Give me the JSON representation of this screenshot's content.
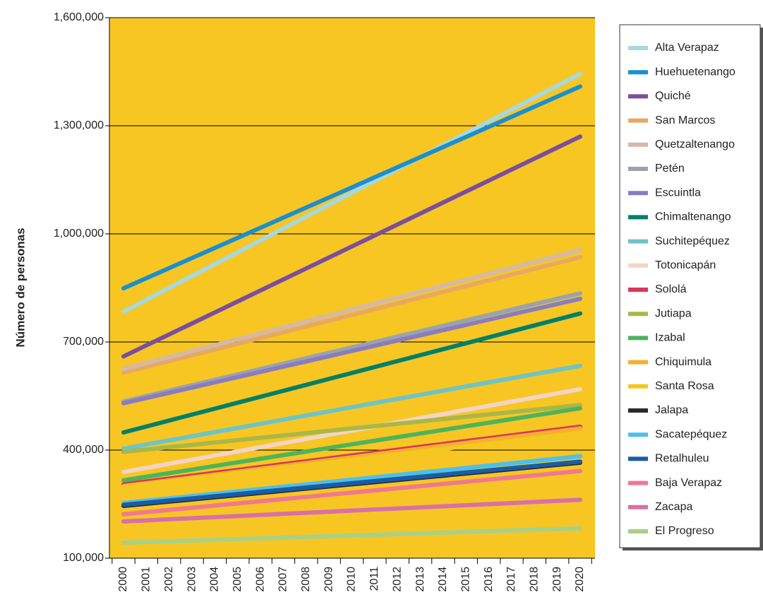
{
  "chart_data": {
    "type": "line",
    "ylabel": "Número de personas",
    "categories": [
      "2000",
      "2001",
      "2002",
      "2003",
      "2004",
      "2005",
      "2006",
      "2007",
      "2008",
      "2009",
      "2010",
      "2011",
      "2012",
      "2013",
      "2014",
      "2015",
      "2016",
      "2017",
      "2018",
      "2019",
      "2020"
    ],
    "ylim": [
      100000,
      1600000
    ],
    "yticks": [
      {
        "value": 100000,
        "label": "100,000"
      },
      {
        "value": 400000,
        "label": "400,000"
      },
      {
        "value": 700000,
        "label": "700,000"
      },
      {
        "value": 1000000,
        "label": "1,000,000"
      },
      {
        "value": 1300000,
        "label": "1,300,000"
      },
      {
        "value": 1600000,
        "label": "1,600,000"
      }
    ],
    "grid": true,
    "background": "#f7c623",
    "legend": "right",
    "series": [
      {
        "name": "Alta Verapaz",
        "color": "#a6d8e0",
        "values": [
          784000,
          817000,
          850000,
          883000,
          916000,
          949000,
          982000,
          1015000,
          1048000,
          1081000,
          1114000,
          1147000,
          1180000,
          1213000,
          1246000,
          1279000,
          1312000,
          1345000,
          1378000,
          1411000,
          1444000
        ]
      },
      {
        "name": "Huehuetenango",
        "color": "#1a8fd0",
        "values": [
          849000,
          877000,
          905000,
          933000,
          961000,
          989000,
          1017000,
          1045000,
          1073000,
          1101000,
          1129000,
          1157000,
          1185000,
          1213000,
          1241000,
          1269000,
          1297000,
          1325000,
          1353000,
          1381000,
          1409000
        ]
      },
      {
        "name": "Quiché",
        "color": "#7a4e9e",
        "values": [
          660000,
          690500,
          721000,
          751500,
          782000,
          812500,
          843000,
          873500,
          904000,
          934500,
          965000,
          995500,
          1026000,
          1056500,
          1087000,
          1117500,
          1148000,
          1178500,
          1209000,
          1239500,
          1270000
        ]
      },
      {
        "name": "San Marcos",
        "color": "#e8a860",
        "values": [
          615000,
          631000,
          647000,
          663000,
          679000,
          695000,
          711000,
          727000,
          743000,
          759000,
          775000,
          791000,
          807000,
          823000,
          839000,
          855000,
          871000,
          887000,
          903000,
          919000,
          935000
        ]
      },
      {
        "name": "Quetzaltenango",
        "color": "#d4b8a8",
        "values": [
          625000,
          641500,
          658000,
          674500,
          691000,
          707500,
          724000,
          740500,
          757000,
          773500,
          790000,
          806500,
          823000,
          839500,
          856000,
          872500,
          889000,
          905500,
          922000,
          938500,
          955000
        ]
      },
      {
        "name": "Petén",
        "color": "#9aa3ad",
        "values": [
          535000,
          550000,
          565000,
          580000,
          595000,
          610000,
          625000,
          640000,
          655000,
          670000,
          685000,
          700000,
          715000,
          730000,
          745000,
          760000,
          775000,
          790000,
          805000,
          820000,
          835000
        ]
      },
      {
        "name": "Escuintla",
        "color": "#8a7cc0",
        "values": [
          530000,
          544500,
          559000,
          573500,
          588000,
          602500,
          617000,
          631500,
          646000,
          660500,
          675000,
          689500,
          704000,
          718500,
          733000,
          747500,
          762000,
          776500,
          791000,
          805500,
          820000
        ]
      },
      {
        "name": "Chimaltenango",
        "color": "#00806a",
        "values": [
          449000,
          465500,
          482000,
          498500,
          515000,
          531500,
          548000,
          564500,
          581000,
          597500,
          614000,
          630500,
          647000,
          663500,
          680000,
          696500,
          713000,
          729500,
          746000,
          762500,
          779000
        ]
      },
      {
        "name": "Suchitepéquez",
        "color": "#6cc4c8",
        "values": [
          404000,
          415500,
          427000,
          438500,
          450000,
          461500,
          473000,
          484500,
          496000,
          507500,
          519000,
          530500,
          542000,
          553500,
          565000,
          576500,
          588000,
          599500,
          611000,
          622500,
          634000
        ]
      },
      {
        "name": "Totonicapán",
        "color": "#f4d4c8",
        "values": [
          339000,
          350500,
          362000,
          373500,
          385000,
          396500,
          408000,
          419500,
          431000,
          442500,
          454000,
          465500,
          477000,
          488500,
          500000,
          511500,
          523000,
          534500,
          546000,
          557500,
          569000
        ]
      },
      {
        "name": "Sololá",
        "color": "#d8365a",
        "values": [
          305000,
          313000,
          321000,
          329000,
          337000,
          345000,
          353000,
          361000,
          369000,
          377000,
          385000,
          393000,
          401000,
          409000,
          417000,
          425000,
          433000,
          441000,
          449000,
          457000,
          465000
        ]
      },
      {
        "name": "Jutiapa",
        "color": "#a8b848",
        "values": [
          395000,
          401500,
          408000,
          414500,
          421000,
          427500,
          434000,
          440500,
          447000,
          453500,
          460000,
          466500,
          473000,
          479500,
          486000,
          492500,
          499000,
          505500,
          512000,
          518500,
          525000
        ]
      },
      {
        "name": "Izabal",
        "color": "#4cb45c",
        "values": [
          316000,
          326000,
          336000,
          346000,
          356000,
          366000,
          376000,
          386000,
          396000,
          406000,
          416000,
          426000,
          436000,
          446000,
          456000,
          466000,
          476000,
          486000,
          496000,
          506000,
          516000
        ]
      },
      {
        "name": "Chiquimula",
        "color": "#f4b030",
        "values": [
          300000,
          308000,
          316000,
          324000,
          332000,
          340000,
          348000,
          356000,
          364000,
          372000,
          380000,
          388000,
          396000,
          404000,
          412000,
          420000,
          428000,
          436000,
          444000,
          452000,
          460000
        ]
      },
      {
        "name": "Santa Rosa",
        "color": "#f4c81c",
        "values": [
          298000,
          305500,
          313000,
          320500,
          328000,
          335500,
          343000,
          350500,
          358000,
          365500,
          373000,
          380500,
          388000,
          395500,
          403000,
          410500,
          418000,
          425500,
          433000,
          440500,
          448000
        ]
      },
      {
        "name": "Jalapa",
        "color": "#2a2a2a",
        "values": [
          245000,
          251000,
          257000,
          263000,
          269000,
          275000,
          281000,
          287000,
          293000,
          299000,
          305000,
          311000,
          317000,
          323000,
          329000,
          335000,
          341000,
          347000,
          353000,
          359000,
          365000
        ]
      },
      {
        "name": "Sacatepéquez",
        "color": "#4cc0e8",
        "values": [
          253000,
          259500,
          266000,
          272500,
          279000,
          285500,
          292000,
          298500,
          305000,
          311500,
          318000,
          324500,
          331000,
          337500,
          344000,
          350500,
          357000,
          363500,
          370000,
          376500,
          383000
        ]
      },
      {
        "name": "Retalhuleu",
        "color": "#1a5ca8",
        "values": [
          248000,
          254000,
          260000,
          266000,
          272000,
          278000,
          284000,
          290000,
          296000,
          302000,
          308000,
          314000,
          320000,
          326000,
          332000,
          338000,
          344000,
          350000,
          356000,
          362000,
          368000
        ]
      },
      {
        "name": "Baja Verapaz",
        "color": "#f07890",
        "values": [
          222000,
          228000,
          234000,
          240000,
          246000,
          252000,
          258000,
          264000,
          270000,
          276000,
          282000,
          288000,
          294000,
          300000,
          306000,
          312000,
          318000,
          324000,
          330000,
          336000,
          342000
        ]
      },
      {
        "name": "Zacapa",
        "color": "#d870a8",
        "values": [
          202000,
          205000,
          208000,
          211000,
          214000,
          217000,
          220000,
          223000,
          226000,
          229000,
          232000,
          235000,
          238000,
          241000,
          244000,
          247000,
          250000,
          253000,
          256000,
          259000,
          262000
        ]
      },
      {
        "name": "El Progreso",
        "color": "#a8d088",
        "values": [
          143000,
          145000,
          147000,
          149000,
          151000,
          153000,
          155000,
          157000,
          159000,
          161000,
          163000,
          165000,
          167000,
          169000,
          171000,
          173000,
          175000,
          177000,
          179000,
          181000,
          183000
        ]
      }
    ]
  }
}
